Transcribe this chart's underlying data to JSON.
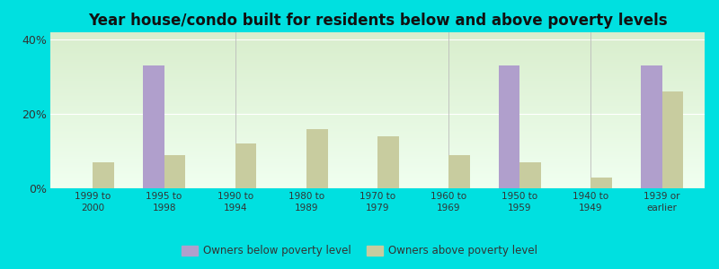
{
  "title": "Year house/condo built for residents below and above poverty levels",
  "categories": [
    "1999 to\n2000",
    "1995 to\n1998",
    "1990 to\n1994",
    "1980 to\n1989",
    "1970 to\n1979",
    "1960 to\n1969",
    "1950 to\n1959",
    "1940 to\n1949",
    "1939 or\nearlier"
  ],
  "below_poverty": [
    0,
    33,
    0,
    0,
    0,
    0,
    33,
    0,
    33
  ],
  "above_poverty": [
    7,
    9,
    12,
    16,
    14,
    9,
    7,
    3,
    26
  ],
  "below_color": "#b09fcc",
  "above_color": "#c8cc9f",
  "ylim": [
    0,
    42
  ],
  "yticks": [
    0,
    20,
    40
  ],
  "ytick_labels": [
    "0%",
    "20%",
    "40%"
  ],
  "background_outer": "#00e0e0",
  "background_inner_top": "#f0fff0",
  "background_inner_bottom": "#d8edcc",
  "legend_below": "Owners below poverty level",
  "legend_above": "Owners above poverty level",
  "title_fontsize": 12,
  "bar_width": 0.3
}
